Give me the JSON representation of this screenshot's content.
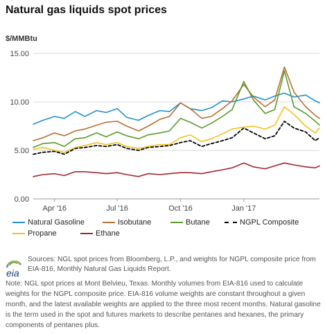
{
  "header": {
    "title": "Natural gas liquids spot prices",
    "unit": "$/MMBtu"
  },
  "legend": [
    {
      "label": "Natural Gasoline",
      "color": "#1f8fd2",
      "dashed": false
    },
    {
      "label": "Isobutane",
      "color": "#b86e34",
      "dashed": false
    },
    {
      "label": "Butane",
      "color": "#5a9a2b",
      "dashed": false
    },
    {
      "label": "NGPL Composite",
      "color": "#000000",
      "dashed": true
    },
    {
      "label": "Propane",
      "color": "#f3c21a",
      "dashed": false
    },
    {
      "label": "Ethane",
      "color": "#a0262d",
      "dashed": false
    }
  ],
  "footer": {
    "logo_text": "eia",
    "sources": "Sources: NGL spot prices from Bloomberg, L.P., and weights for NGPL composite price from EIA-816, Monthly Natural Gas Liquids Report.",
    "note": "Note: NGL spot prices at Mont Belvieu, Texas. Monthly volumes from EIA-816 used to calculate weights for the NGPL composite price. EIA-816 volume weights are constant throughout a given month, and the latest available weights are applied to the three most recent months. Natural gasoline is the term used in the spot and futures markets to describe pentanes and hexanes, the primary components of pentanes plus."
  },
  "chart_data": {
    "type": "line",
    "title": "Natural gas liquids spot prices",
    "ylabel": "$/MMBtu",
    "xlabel": "",
    "ylim": [
      0,
      15
    ],
    "yticks": [
      0,
      5,
      10,
      15
    ],
    "ytick_labels": [
      "0.00",
      "5.00",
      "10.00",
      "15.00"
    ],
    "xlim": [
      "2016-03-01",
      "2017-04-21"
    ],
    "xticks": [
      {
        "date": "2016-04-01",
        "label": "Apr '16"
      },
      {
        "date": "2016-07-01",
        "label": "Jul '16"
      },
      {
        "date": "2016-10-01",
        "label": "Oct '16"
      },
      {
        "date": "2017-01-01",
        "label": "Jan '17"
      }
    ],
    "grid": true,
    "legend_position": "bottom",
    "x": [
      "2016-03-01",
      "2016-03-15",
      "2016-04-01",
      "2016-04-15",
      "2016-05-01",
      "2016-05-15",
      "2016-06-01",
      "2016-06-15",
      "2016-07-01",
      "2016-07-15",
      "2016-08-01",
      "2016-08-15",
      "2016-09-01",
      "2016-09-15",
      "2016-10-01",
      "2016-10-15",
      "2016-11-01",
      "2016-11-15",
      "2016-12-01",
      "2016-12-15",
      "2017-01-01",
      "2017-01-15",
      "2017-02-01",
      "2017-02-15",
      "2017-03-01",
      "2017-03-15",
      "2017-04-01",
      "2017-04-15",
      "2017-04-21"
    ],
    "series": [
      {
        "name": "Natural Gasoline",
        "color": "#1f8fd2",
        "dashed": false,
        "values": [
          7.7,
          8.1,
          8.5,
          8.3,
          9.0,
          8.5,
          9.1,
          8.9,
          9.3,
          8.4,
          8.1,
          8.6,
          9.1,
          9.0,
          9.9,
          9.3,
          9.1,
          9.4,
          10.1,
          10.0,
          10.3,
          10.6,
          10.2,
          10.6,
          10.9,
          10.5,
          10.7,
          10.1,
          9.9
        ]
      },
      {
        "name": "Isobutane",
        "color": "#b86e34",
        "dashed": false,
        "values": [
          6.0,
          6.3,
          6.8,
          6.5,
          7.0,
          7.2,
          7.6,
          7.9,
          8.0,
          7.5,
          7.0,
          7.5,
          8.2,
          8.5,
          9.9,
          9.3,
          8.3,
          8.5,
          9.3,
          10.1,
          11.8,
          10.5,
          9.5,
          10.2,
          13.6,
          11.0,
          9.5,
          8.6,
          8.3
        ]
      },
      {
        "name": "Butane",
        "color": "#5a9a2b",
        "dashed": false,
        "values": [
          5.3,
          5.7,
          5.8,
          5.4,
          6.2,
          6.3,
          6.8,
          6.4,
          6.9,
          6.5,
          6.2,
          6.6,
          6.8,
          7.0,
          8.3,
          7.9,
          7.3,
          7.8,
          8.5,
          9.2,
          12.1,
          10.2,
          8.8,
          9.2,
          13.2,
          9.5,
          8.8,
          8.0,
          7.6
        ]
      },
      {
        "name": "NGPL Composite",
        "color": "#000000",
        "dashed": true,
        "values": [
          4.6,
          4.8,
          4.9,
          4.6,
          5.2,
          5.3,
          5.5,
          5.4,
          5.6,
          5.2,
          5.0,
          5.3,
          5.4,
          5.5,
          5.8,
          6.0,
          5.4,
          5.7,
          6.0,
          6.3,
          7.3,
          6.8,
          6.2,
          6.5,
          8.0,
          7.3,
          6.9,
          6.0,
          6.3
        ]
      },
      {
        "name": "Propane",
        "color": "#f3c21a",
        "dashed": false,
        "values": [
          5.1,
          5.3,
          5.0,
          4.8,
          5.3,
          5.5,
          5.8,
          5.6,
          5.8,
          5.4,
          5.2,
          5.4,
          5.6,
          5.6,
          6.3,
          6.6,
          5.9,
          6.2,
          6.7,
          7.2,
          7.4,
          7.5,
          7.2,
          7.6,
          9.5,
          8.7,
          7.5,
          6.8,
          7.3
        ]
      },
      {
        "name": "Ethane",
        "color": "#a0262d",
        "dashed": false,
        "values": [
          2.3,
          2.5,
          2.6,
          2.4,
          2.8,
          2.8,
          2.7,
          2.6,
          2.7,
          2.5,
          2.3,
          2.6,
          2.5,
          2.6,
          2.7,
          2.7,
          2.6,
          2.8,
          3.0,
          3.2,
          3.7,
          3.3,
          3.1,
          3.4,
          3.7,
          3.5,
          3.3,
          3.2,
          3.4
        ]
      }
    ]
  }
}
